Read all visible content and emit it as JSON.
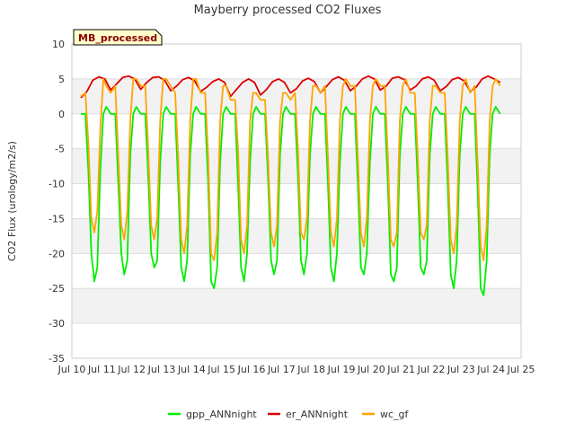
{
  "chart_data": {
    "type": "line",
    "title": "Mayberry processed CO2 Fluxes",
    "xlabel": "",
    "ylabel": "CO2 Flux (urology/m2/s)",
    "badge": "MB_processed",
    "x_range_days": [
      10,
      25
    ],
    "ylim": [
      -35,
      10
    ],
    "y_ticks": [
      10,
      5,
      0,
      -5,
      -10,
      -15,
      -20,
      -25,
      -30,
      -35
    ],
    "x_ticks": [
      {
        "day": 10,
        "label": "Jul 10"
      },
      {
        "day": 11,
        "label": "Jul 11"
      },
      {
        "day": 12,
        "label": "Jul 12"
      },
      {
        "day": 13,
        "label": "Jul 13"
      },
      {
        "day": 14,
        "label": "Jul 14"
      },
      {
        "day": 15,
        "label": "Jul 15"
      },
      {
        "day": 16,
        "label": "Jul 16"
      },
      {
        "day": 17,
        "label": "Jul 17"
      },
      {
        "day": 18,
        "label": "Jul 18"
      },
      {
        "day": 19,
        "label": "Jul 19"
      },
      {
        "day": 20,
        "label": "Jul 20"
      },
      {
        "day": 21,
        "label": "Jul 21"
      },
      {
        "day": 22,
        "label": "Jul 22"
      },
      {
        "day": 23,
        "label": "Jul 23"
      },
      {
        "day": 24,
        "label": "Jul 24"
      },
      {
        "day": 25,
        "label": "Jul 25"
      }
    ],
    "grid": true,
    "legend_position": "bottom-center",
    "series": [
      {
        "name": "gpp_ANNnight",
        "color": "#00ee00",
        "x": [
          10.3,
          10.45,
          10.55,
          10.65,
          10.75,
          10.85,
          10.95,
          11.05,
          11.15,
          11.3,
          11.45,
          11.55,
          11.65,
          11.75,
          11.85,
          11.95,
          12.05,
          12.15,
          12.3,
          12.45,
          12.55,
          12.65,
          12.75,
          12.85,
          12.95,
          13.05,
          13.15,
          13.3,
          13.45,
          13.55,
          13.65,
          13.75,
          13.85,
          13.95,
          14.05,
          14.15,
          14.3,
          14.45,
          14.55,
          14.65,
          14.75,
          14.85,
          14.95,
          15.05,
          15.15,
          15.3,
          15.45,
          15.55,
          15.65,
          15.75,
          15.85,
          15.95,
          16.05,
          16.15,
          16.3,
          16.45,
          16.55,
          16.65,
          16.75,
          16.85,
          16.95,
          17.05,
          17.15,
          17.3,
          17.45,
          17.55,
          17.65,
          17.75,
          17.85,
          17.95,
          18.05,
          18.15,
          18.3,
          18.45,
          18.55,
          18.65,
          18.75,
          18.85,
          18.95,
          19.05,
          19.15,
          19.3,
          19.45,
          19.55,
          19.65,
          19.75,
          19.85,
          19.95,
          20.05,
          20.15,
          20.3,
          20.45,
          20.55,
          20.65,
          20.75,
          20.85,
          20.95,
          21.05,
          21.15,
          21.3,
          21.45,
          21.55,
          21.65,
          21.75,
          21.85,
          21.95,
          22.05,
          22.15,
          22.3,
          22.45,
          22.55,
          22.65,
          22.75,
          22.85,
          22.95,
          23.05,
          23.15,
          23.3,
          23.45,
          23.55,
          23.65,
          23.75,
          23.85,
          23.95,
          24.05,
          24.15,
          24.3
        ],
        "y": [
          0,
          0,
          -8,
          -20,
          -24,
          -22,
          -8,
          0,
          1,
          0,
          0,
          -10,
          -20,
          -23,
          -21,
          -6,
          0,
          1,
          0,
          0,
          -9,
          -20,
          -22,
          -21,
          -7,
          0,
          1,
          0,
          0,
          -10,
          -22,
          -24,
          -21,
          -6,
          0,
          1,
          0,
          0,
          -10,
          -24,
          -25,
          -22,
          -7,
          0,
          1,
          0,
          0,
          -10,
          -22,
          -24,
          -20,
          -7,
          0,
          1,
          0,
          0,
          -9,
          -21,
          -23,
          -21,
          -6,
          0,
          1,
          0,
          0,
          -9,
          -21,
          -23,
          -20,
          -6,
          0,
          1,
          0,
          0,
          -10,
          -22,
          -24,
          -20,
          -7,
          0,
          1,
          0,
          0,
          -10,
          -22,
          -23,
          -20,
          -7,
          0,
          1,
          0,
          0,
          -10,
          -23,
          -24,
          -22,
          -6,
          0,
          1,
          0,
          0,
          -10,
          -22,
          -23,
          -21,
          -6,
          0,
          1,
          0,
          0,
          -10,
          -23,
          -25,
          -21,
          -6,
          0,
          1,
          0,
          0,
          -11,
          -25,
          -26,
          -21,
          -6,
          0,
          1,
          0
        ]
      },
      {
        "name": "er_ANNnight",
        "color": "#dd0000",
        "x": [
          10.3,
          10.5,
          10.7,
          10.9,
          11.1,
          11.3,
          11.5,
          11.7,
          11.9,
          12.1,
          12.3,
          12.5,
          12.7,
          12.9,
          13.1,
          13.3,
          13.5,
          13.7,
          13.9,
          14.1,
          14.3,
          14.5,
          14.7,
          14.9,
          15.1,
          15.3,
          15.5,
          15.7,
          15.9,
          16.1,
          16.3,
          16.5,
          16.7,
          16.9,
          17.1,
          17.3,
          17.5,
          17.7,
          17.9,
          18.1,
          18.3,
          18.5,
          18.7,
          18.9,
          19.1,
          19.3,
          19.5,
          19.7,
          19.9,
          20.1,
          20.3,
          20.5,
          20.7,
          20.9,
          21.1,
          21.3,
          21.5,
          21.7,
          21.9,
          22.1,
          22.3,
          22.5,
          22.7,
          22.9,
          23.1,
          23.3,
          23.5,
          23.7,
          23.9,
          24.1,
          24.3
        ],
        "y": [
          2.3,
          3.2,
          4.8,
          5.3,
          5.0,
          3.4,
          4.3,
          5.2,
          5.4,
          5.0,
          3.5,
          4.5,
          5.2,
          5.3,
          4.8,
          3.3,
          4.0,
          4.9,
          5.2,
          4.7,
          3.2,
          3.8,
          4.6,
          5.0,
          4.5,
          2.5,
          3.5,
          4.5,
          5.0,
          4.5,
          2.7,
          3.5,
          4.6,
          5.0,
          4.5,
          3.0,
          3.6,
          4.7,
          5.1,
          4.6,
          3.0,
          3.9,
          4.9,
          5.3,
          4.8,
          3.3,
          4.0,
          5.0,
          5.4,
          5.0,
          3.4,
          4.0,
          5.1,
          5.3,
          4.9,
          3.4,
          4.0,
          5.0,
          5.3,
          4.8,
          3.3,
          3.9,
          4.9,
          5.2,
          4.7,
          3.2,
          3.8,
          5.0,
          5.4,
          5.0,
          4.5
        ]
      },
      {
        "name": "wc_gf",
        "color": "#ffa500",
        "x": [
          10.3,
          10.45,
          10.55,
          10.65,
          10.75,
          10.85,
          10.95,
          11.05,
          11.15,
          11.3,
          11.45,
          11.55,
          11.65,
          11.75,
          11.85,
          11.95,
          12.05,
          12.15,
          12.3,
          12.45,
          12.55,
          12.65,
          12.75,
          12.85,
          12.95,
          13.05,
          13.15,
          13.3,
          13.45,
          13.55,
          13.65,
          13.75,
          13.85,
          13.95,
          14.05,
          14.15,
          14.3,
          14.45,
          14.55,
          14.65,
          14.75,
          14.85,
          14.95,
          15.05,
          15.15,
          15.3,
          15.45,
          15.55,
          15.65,
          15.75,
          15.85,
          15.95,
          16.05,
          16.15,
          16.3,
          16.45,
          16.55,
          16.65,
          16.75,
          16.85,
          16.95,
          17.05,
          17.15,
          17.3,
          17.45,
          17.55,
          17.65,
          17.75,
          17.85,
          17.95,
          18.05,
          18.15,
          18.3,
          18.45,
          18.55,
          18.65,
          18.75,
          18.85,
          18.95,
          19.05,
          19.15,
          19.3,
          19.45,
          19.55,
          19.65,
          19.75,
          19.85,
          19.95,
          20.05,
          20.15,
          20.3,
          20.45,
          20.55,
          20.65,
          20.75,
          20.85,
          20.95,
          21.05,
          21.15,
          21.3,
          21.45,
          21.55,
          21.65,
          21.75,
          21.85,
          21.95,
          22.05,
          22.15,
          22.3,
          22.45,
          22.55,
          22.65,
          22.75,
          22.85,
          22.95,
          23.05,
          23.15,
          23.3,
          23.45,
          23.55,
          23.65,
          23.75,
          23.85,
          23.95,
          24.05,
          24.15,
          24.3
        ],
        "y": [
          2.5,
          3,
          -4,
          -15,
          -17,
          -14,
          -2,
          5,
          4,
          3,
          4,
          -6,
          -16,
          -18,
          -14,
          -1,
          5,
          5,
          4,
          4,
          -5,
          -16,
          -18,
          -15,
          -1,
          5,
          5,
          4,
          3,
          -6,
          -18,
          -20,
          -16,
          -1,
          5,
          5,
          3,
          3,
          -6,
          -20,
          -21,
          -17,
          -1,
          4,
          4,
          2,
          2,
          -5,
          -18,
          -20,
          -16,
          -1,
          3,
          3,
          2,
          2,
          -6,
          -17,
          -19,
          -16,
          -1,
          3,
          3,
          2,
          3,
          -5,
          -17,
          -18,
          -15,
          -1,
          4,
          4,
          3,
          4,
          -6,
          -17,
          -19,
          -15,
          -1,
          4,
          5,
          4,
          4,
          -6,
          -17,
          -19,
          -15,
          -1,
          4,
          5,
          4,
          4,
          -6,
          -18,
          -19,
          -17,
          -1,
          4,
          5,
          3,
          3,
          -6,
          -17,
          -18,
          -16,
          -1,
          4,
          4,
          3,
          3,
          -6,
          -18,
          -20,
          -16,
          -1,
          4,
          5,
          3,
          4,
          -7,
          -19,
          -21,
          -16,
          -1,
          4,
          5,
          4
        ]
      }
    ]
  }
}
